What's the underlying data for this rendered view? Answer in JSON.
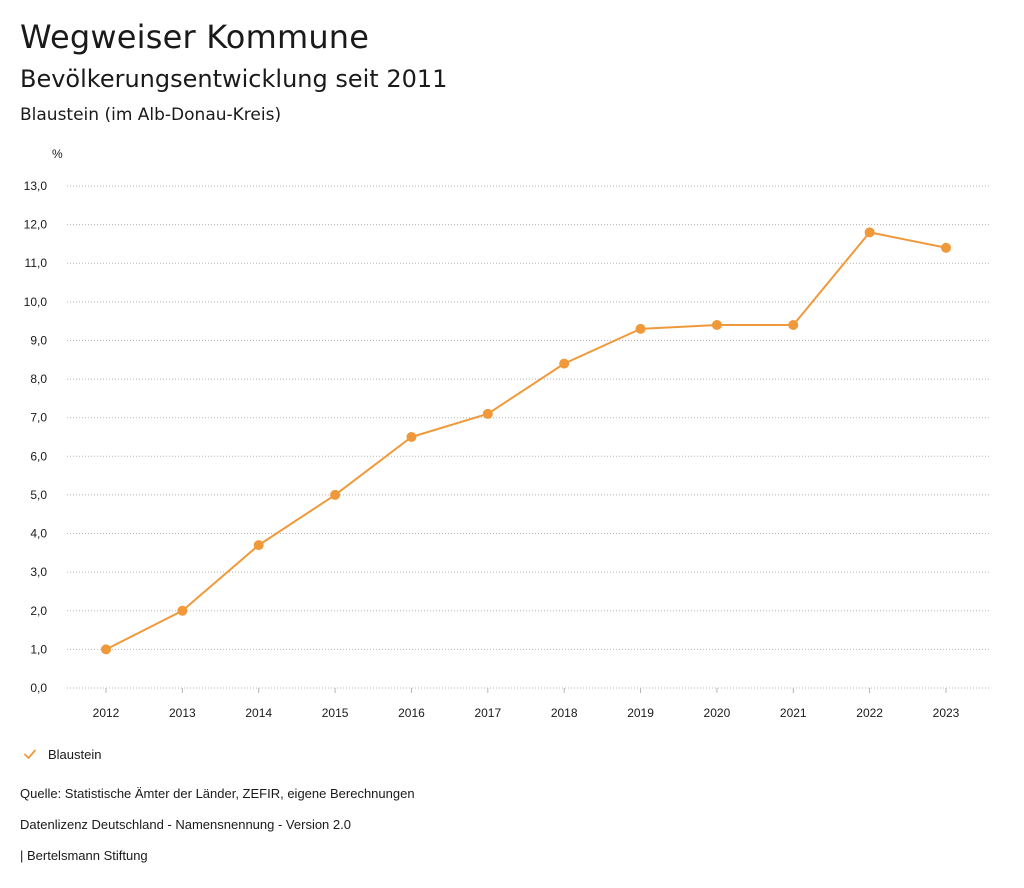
{
  "header": {
    "title": "Wegweiser Kommune",
    "subtitle": "Bevölkerungsentwicklung seit 2011",
    "region": "Blaustein (im Alb-Donau-Kreis)"
  },
  "legend": {
    "items": [
      {
        "label": "Blaustein",
        "icon": "checkmark-icon"
      }
    ]
  },
  "footer": {
    "source": "Quelle: Statistische Ämter der Länder, ZEFIR, eigene Berechnungen",
    "license": "Datenlizenz Deutschland - Namensnennung - Version 2.0",
    "publisher": "| Bertelsmann Stiftung"
  },
  "colors": {
    "series": "#f0993a",
    "grid": "#b5b5b5",
    "text": "#1a1a1a"
  },
  "chart_data": {
    "type": "line",
    "title": "Bevölkerungsentwicklung seit 2011",
    "ylabel": "%",
    "xlabel": "",
    "ylim": [
      0,
      13
    ],
    "yticks": [
      "0,0",
      "1,0",
      "2,0",
      "3,0",
      "4,0",
      "5,0",
      "6,0",
      "7,0",
      "8,0",
      "9,0",
      "10,0",
      "11,0",
      "12,0",
      "13,0"
    ],
    "categories": [
      "2012",
      "2013",
      "2014",
      "2015",
      "2016",
      "2017",
      "2018",
      "2019",
      "2020",
      "2021",
      "2022",
      "2023"
    ],
    "grid": true,
    "legend_position": "bottom-left",
    "series": [
      {
        "name": "Blaustein",
        "values": [
          1.0,
          2.0,
          3.7,
          5.0,
          6.5,
          7.1,
          8.4,
          9.3,
          9.4,
          9.4,
          11.8,
          11.4
        ]
      }
    ]
  }
}
